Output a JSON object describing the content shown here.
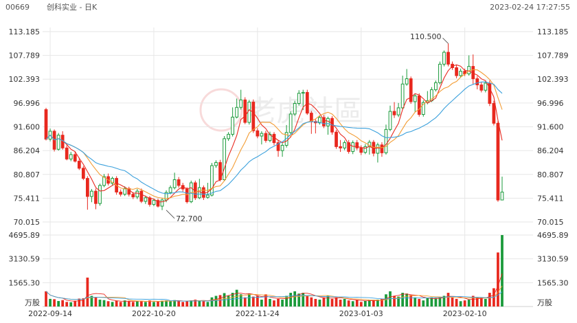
{
  "header": {
    "code": "00669",
    "name": "创科实业 - 日K",
    "datetime": "2023-02-24 17:27:55"
  },
  "watermark": "老虎社區",
  "colors": {
    "up": "#1a9a3a",
    "down": "#e8281e",
    "ma5": "#e8281e",
    "ma10": "#f39c33",
    "ma20": "#3aa0dc",
    "grid": "#e6e6e6",
    "axis_text": "#333333"
  },
  "chart_data": {
    "type": "candlestick",
    "price_axis": {
      "ticks": [
        113.185,
        107.789,
        102.393,
        96.996,
        91.6,
        86.204,
        80.807,
        75.411,
        70.015
      ],
      "range": [
        70.015,
        113.185
      ]
    },
    "volume_axis": {
      "ticks": [
        4695.89,
        3130.59,
        1565.3
      ],
      "unit": "万股",
      "range": [
        0,
        4695.89
      ]
    },
    "x_labels": [
      "2022-09-14",
      "2022-10-20",
      "2022-11-24",
      "2023-01-03",
      "2023-02-10"
    ],
    "x_label_index": [
      1,
      26,
      51,
      76,
      101
    ],
    "annotations": [
      {
        "text": "110.500",
        "index": 97,
        "value": 110.5,
        "kind": "high"
      },
      {
        "text": "72.700",
        "index": 29,
        "value": 72.7,
        "kind": "low"
      }
    ],
    "candles": [
      [
        95.5,
        88.8,
        95.9,
        88.5,
        1000
      ],
      [
        88.8,
        90.6,
        91.2,
        88.3,
        500
      ],
      [
        90.6,
        86.5,
        91.0,
        86.0,
        480
      ],
      [
        86.5,
        89.7,
        90.2,
        86.2,
        360
      ],
      [
        89.7,
        86.8,
        90.6,
        86.4,
        420
      ],
      [
        86.8,
        84.3,
        87.4,
        84.0,
        300
      ],
      [
        84.3,
        85.3,
        85.9,
        83.8,
        280
      ],
      [
        85.3,
        83.8,
        86.0,
        83.5,
        380
      ],
      [
        83.8,
        82.2,
        84.6,
        81.8,
        520
      ],
      [
        82.2,
        79.9,
        82.7,
        79.5,
        540
      ],
      [
        79.9,
        75.8,
        80.4,
        72.8,
        1900
      ],
      [
        75.8,
        77.0,
        77.5,
        74.5,
        700
      ],
      [
        77.0,
        74.2,
        77.6,
        72.9,
        600
      ],
      [
        74.2,
        78.3,
        78.7,
        73.7,
        450
      ],
      [
        78.3,
        80.3,
        80.9,
        77.9,
        420
      ],
      [
        80.3,
        78.8,
        81.0,
        78.3,
        350
      ],
      [
        78.8,
        79.9,
        80.3,
        78.3,
        300
      ],
      [
        79.9,
        76.8,
        80.4,
        76.2,
        380
      ],
      [
        76.8,
        76.3,
        77.4,
        75.8,
        300
      ],
      [
        76.3,
        77.6,
        78.1,
        75.9,
        400
      ],
      [
        77.6,
        76.3,
        78.0,
        75.8,
        350
      ],
      [
        76.3,
        75.7,
        76.8,
        75.2,
        300
      ],
      [
        75.7,
        77.0,
        77.5,
        75.2,
        380
      ],
      [
        77.0,
        74.7,
        77.6,
        74.3,
        350
      ],
      [
        74.7,
        75.5,
        76.0,
        74.1,
        300
      ],
      [
        75.5,
        74.0,
        75.9,
        73.5,
        400
      ],
      [
        74.0,
        74.9,
        75.3,
        73.6,
        300
      ],
      [
        74.9,
        73.6,
        75.3,
        73.3,
        350
      ],
      [
        73.6,
        75.0,
        75.5,
        72.7,
        380
      ],
      [
        75.0,
        76.7,
        77.2,
        74.5,
        400
      ],
      [
        76.7,
        77.8,
        78.3,
        76.3,
        350
      ],
      [
        77.8,
        79.6,
        81.2,
        77.4,
        420
      ],
      [
        79.6,
        78.3,
        80.2,
        77.8,
        380
      ],
      [
        78.3,
        77.5,
        78.9,
        76.9,
        300
      ],
      [
        77.5,
        74.6,
        77.9,
        74.2,
        380
      ],
      [
        74.6,
        78.9,
        79.4,
        74.3,
        400
      ],
      [
        78.9,
        75.5,
        79.4,
        75.0,
        450
      ],
      [
        75.5,
        77.8,
        79.8,
        75.2,
        400
      ],
      [
        77.8,
        75.6,
        78.3,
        75.0,
        350
      ],
      [
        75.6,
        76.1,
        78.9,
        75.3,
        300
      ],
      [
        76.1,
        82.8,
        83.4,
        75.8,
        600
      ],
      [
        82.8,
        83.5,
        84.0,
        82.3,
        700
      ],
      [
        83.5,
        79.6,
        84.1,
        79.2,
        750
      ],
      [
        79.6,
        88.9,
        89.5,
        79.3,
        880
      ],
      [
        88.9,
        89.9,
        90.4,
        88.4,
        700
      ],
      [
        89.9,
        93.8,
        96.0,
        89.4,
        900
      ],
      [
        93.8,
        96.0,
        98.0,
        93.5,
        1100
      ],
      [
        96.0,
        97.7,
        100.0,
        95.5,
        800
      ],
      [
        97.7,
        92.6,
        98.3,
        92.2,
        600
      ],
      [
        92.6,
        97.2,
        97.7,
        92.1,
        850
      ],
      [
        97.2,
        90.7,
        97.8,
        90.2,
        650
      ],
      [
        90.7,
        89.5,
        91.3,
        89.0,
        700
      ],
      [
        89.5,
        90.1,
        90.6,
        87.6,
        450
      ],
      [
        90.1,
        88.5,
        90.7,
        88.0,
        800
      ],
      [
        88.5,
        89.9,
        90.5,
        88.1,
        500
      ],
      [
        89.9,
        88.0,
        90.4,
        87.4,
        400
      ],
      [
        88.0,
        86.2,
        88.5,
        84.8,
        500
      ],
      [
        86.2,
        87.4,
        87.9,
        84.8,
        450
      ],
      [
        87.4,
        90.3,
        92.0,
        86.9,
        700
      ],
      [
        90.3,
        94.5,
        95.1,
        89.9,
        900
      ],
      [
        94.5,
        96.9,
        97.5,
        94.1,
        1000
      ],
      [
        96.9,
        99.2,
        99.9,
        96.4,
        850
      ],
      [
        99.2,
        99.4,
        100.0,
        95.4,
        900
      ],
      [
        99.4,
        94.7,
        100.0,
        94.3,
        700
      ],
      [
        94.7,
        92.8,
        95.2,
        90.0,
        600
      ],
      [
        92.8,
        92.5,
        93.3,
        90.1,
        500
      ],
      [
        92.5,
        93.7,
        94.2,
        92.1,
        450
      ],
      [
        93.7,
        91.8,
        94.3,
        91.3,
        600
      ],
      [
        91.8,
        93.5,
        93.9,
        89.8,
        700
      ],
      [
        93.5,
        90.4,
        94.0,
        89.8,
        500
      ],
      [
        90.4,
        87.1,
        90.9,
        86.6,
        600
      ],
      [
        87.1,
        86.8,
        88.6,
        85.9,
        450
      ],
      [
        86.8,
        88.0,
        88.5,
        86.3,
        500
      ],
      [
        88.0,
        86.0,
        88.6,
        85.5,
        400
      ],
      [
        86.0,
        88.0,
        88.5,
        85.4,
        350
      ],
      [
        88.0,
        86.8,
        88.6,
        86.3,
        450
      ],
      [
        86.8,
        85.8,
        87.4,
        85.2,
        300
      ],
      [
        85.8,
        87.1,
        87.7,
        85.4,
        380
      ],
      [
        87.1,
        88.1,
        88.6,
        85.3,
        420
      ],
      [
        88.1,
        85.6,
        88.6,
        84.9,
        400
      ],
      [
        85.6,
        87.5,
        88.0,
        83.5,
        450
      ],
      [
        87.5,
        85.7,
        88.1,
        84.8,
        500
      ],
      [
        85.7,
        91.0,
        92.1,
        85.3,
        800
      ],
      [
        91.0,
        95.1,
        96.4,
        90.6,
        1000
      ],
      [
        95.1,
        94.3,
        97.2,
        93.6,
        700
      ],
      [
        94.3,
        95.9,
        97.0,
        93.8,
        650
      ],
      [
        95.9,
        101.3,
        103.2,
        95.5,
        900
      ],
      [
        101.3,
        102.5,
        104.7,
        100.9,
        850
      ],
      [
        102.5,
        97.3,
        103.0,
        96.8,
        750
      ],
      [
        97.3,
        98.6,
        99.1,
        95.0,
        600
      ],
      [
        98.6,
        94.4,
        99.2,
        93.9,
        500
      ],
      [
        94.4,
        97.1,
        97.6,
        93.9,
        400
      ],
      [
        97.1,
        97.5,
        99.7,
        96.7,
        550
      ],
      [
        97.5,
        100.0,
        100.6,
        97.2,
        600
      ],
      [
        100.0,
        101.6,
        102.1,
        99.6,
        550
      ],
      [
        101.6,
        105.8,
        106.4,
        101.2,
        600
      ],
      [
        105.8,
        108.5,
        108.9,
        105.3,
        700
      ],
      [
        108.5,
        105.8,
        110.5,
        105.3,
        900
      ],
      [
        105.8,
        105.0,
        106.4,
        104.5,
        600
      ],
      [
        105.0,
        103.2,
        105.6,
        102.6,
        500
      ],
      [
        103.2,
        104.2,
        104.8,
        102.7,
        350
      ],
      [
        104.2,
        103.6,
        104.8,
        103.1,
        400
      ],
      [
        103.6,
        105.3,
        107.8,
        103.2,
        450
      ],
      [
        105.3,
        102.5,
        108.0,
        101.3,
        700
      ],
      [
        102.5,
        101.1,
        103.1,
        100.1,
        600
      ],
      [
        101.1,
        99.9,
        101.7,
        99.4,
        550
      ],
      [
        99.9,
        101.5,
        102.1,
        99.4,
        500
      ],
      [
        101.5,
        96.9,
        102.1,
        96.3,
        900
      ],
      [
        96.9,
        92.4,
        97.5,
        91.9,
        1200
      ],
      [
        92.4,
        75.0,
        92.9,
        74.6,
        3550
      ],
      [
        75.0,
        76.8,
        80.3,
        75.2,
        4695
      ]
    ]
  }
}
